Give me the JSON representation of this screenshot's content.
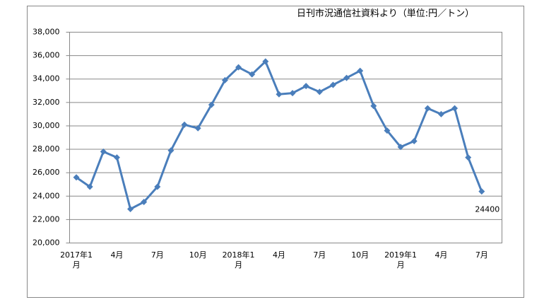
{
  "chart_data": {
    "type": "line",
    "title": "日刊市況通信社資料より（単位:円／トン）",
    "categories": [
      "2017年1月",
      null,
      null,
      "4月",
      null,
      null,
      "7月",
      null,
      null,
      "10月",
      null,
      null,
      "2018年1月",
      null,
      null,
      "4月",
      null,
      null,
      "7月",
      null,
      null,
      "10月",
      null,
      null,
      "2019年1月",
      null,
      null,
      "4月",
      null,
      null,
      "7月"
    ],
    "values": [
      25600,
      24800,
      27800,
      27300,
      22900,
      23500,
      24800,
      27900,
      30100,
      29800,
      31800,
      33900,
      35000,
      34400,
      35500,
      32700,
      32800,
      33400,
      32900,
      33500,
      34100,
      34700,
      31700,
      29600,
      28200,
      28700,
      31500,
      31000,
      31500,
      27300,
      24400
    ],
    "color": "#4a7ebb",
    "ylim": [
      20000,
      38000
    ],
    "yticks": [
      {
        "value": 20000,
        "label": "20,000"
      },
      {
        "value": 22000,
        "label": "22,000"
      },
      {
        "value": 24000,
        "label": "24,000"
      },
      {
        "value": 26000,
        "label": "26,000"
      },
      {
        "value": 28000,
        "label": "28,000"
      },
      {
        "value": 30000,
        "label": "30,000"
      },
      {
        "value": 32000,
        "label": "32,000"
      },
      {
        "value": 34000,
        "label": "34,000"
      },
      {
        "value": 36000,
        "label": "36,000"
      },
      {
        "value": 38000,
        "label": "38,000"
      }
    ],
    "grid": true
  }
}
